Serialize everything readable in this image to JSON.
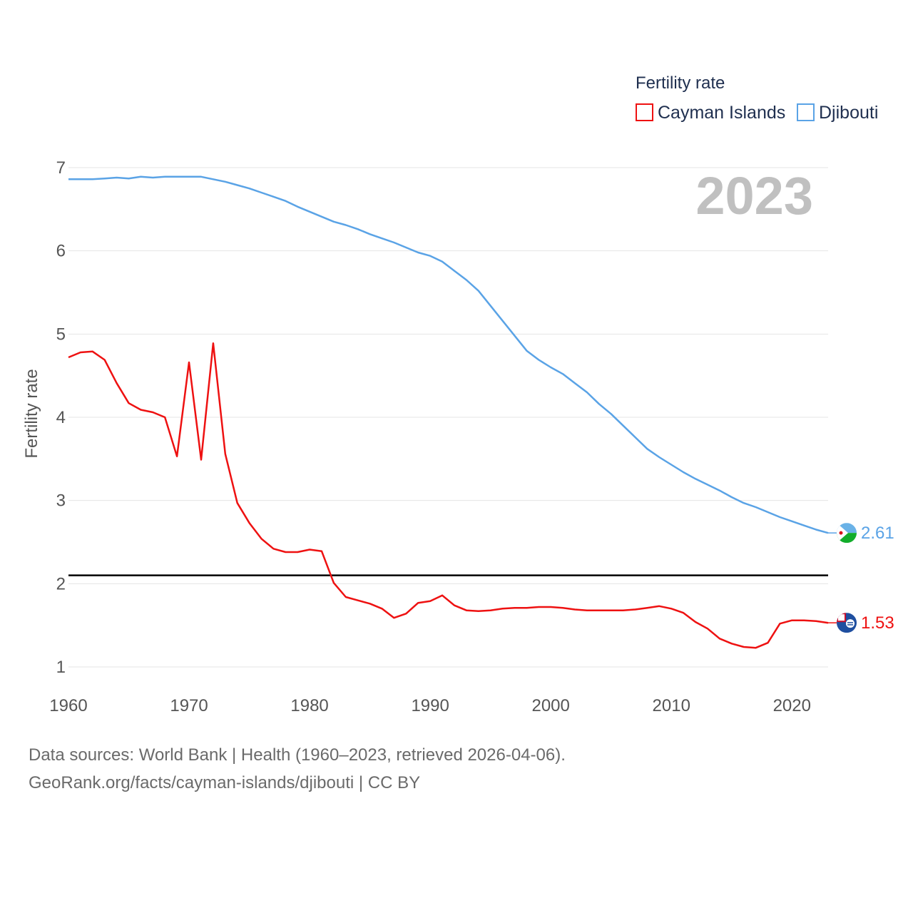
{
  "chart_data": {
    "type": "line",
    "year_label": "2023",
    "ylabel": "Fertility rate",
    "xlabel": "",
    "xlim": [
      1960,
      2023
    ],
    "ylim": [
      1,
      7
    ],
    "x_ticks": [
      1960,
      1970,
      1980,
      1990,
      2000,
      2010,
      2020
    ],
    "y_ticks": [
      1,
      2,
      3,
      4,
      5,
      6,
      7
    ],
    "grid": true,
    "legend": {
      "title": "Fertility rate",
      "position": "top-right"
    },
    "reference_line": {
      "y": 2.1,
      "color": "#000000"
    },
    "series": [
      {
        "name": "Cayman Islands",
        "color": "#ee1111",
        "end_label": "1.53",
        "flag": "cayman-islands-flag",
        "x": [
          1960,
          1961,
          1962,
          1963,
          1964,
          1965,
          1966,
          1967,
          1968,
          1969,
          1970,
          1971,
          1972,
          1973,
          1974,
          1975,
          1976,
          1977,
          1978,
          1979,
          1980,
          1981,
          1982,
          1983,
          1984,
          1985,
          1986,
          1987,
          1988,
          1989,
          1990,
          1991,
          1992,
          1993,
          1994,
          1995,
          1996,
          1997,
          1998,
          1999,
          2000,
          2001,
          2002,
          2003,
          2004,
          2005,
          2006,
          2007,
          2008,
          2009,
          2010,
          2011,
          2012,
          2013,
          2014,
          2015,
          2016,
          2017,
          2018,
          2019,
          2020,
          2021,
          2022,
          2023
        ],
        "values": [
          4.72,
          4.78,
          4.79,
          4.69,
          4.41,
          4.17,
          4.09,
          4.06,
          4.0,
          3.53,
          4.66,
          3.49,
          4.89,
          3.56,
          2.97,
          2.73,
          2.54,
          2.42,
          2.38,
          2.38,
          2.41,
          2.39,
          2.01,
          1.84,
          1.8,
          1.76,
          1.7,
          1.59,
          1.64,
          1.77,
          1.79,
          1.86,
          1.74,
          1.68,
          1.67,
          1.68,
          1.7,
          1.71,
          1.71,
          1.72,
          1.72,
          1.71,
          1.69,
          1.68,
          1.68,
          1.68,
          1.68,
          1.69,
          1.71,
          1.73,
          1.7,
          1.65,
          1.54,
          1.46,
          1.34,
          1.28,
          1.24,
          1.23,
          1.29,
          1.52,
          1.56,
          1.56,
          1.55,
          1.53
        ]
      },
      {
        "name": "Djibouti",
        "color": "#5aa3e6",
        "end_label": "2.61",
        "flag": "djibouti-flag",
        "x": [
          1960,
          1961,
          1962,
          1963,
          1964,
          1965,
          1966,
          1967,
          1968,
          1969,
          1970,
          1971,
          1972,
          1973,
          1974,
          1975,
          1976,
          1977,
          1978,
          1979,
          1980,
          1981,
          1982,
          1983,
          1984,
          1985,
          1986,
          1987,
          1988,
          1989,
          1990,
          1991,
          1992,
          1993,
          1994,
          1995,
          1996,
          1997,
          1998,
          1999,
          2000,
          2001,
          2002,
          2003,
          2004,
          2005,
          2006,
          2007,
          2008,
          2009,
          2010,
          2011,
          2012,
          2013,
          2014,
          2015,
          2016,
          2017,
          2018,
          2019,
          2020,
          2021,
          2022,
          2023
        ],
        "values": [
          6.86,
          6.86,
          6.86,
          6.87,
          6.88,
          6.87,
          6.89,
          6.88,
          6.89,
          6.89,
          6.89,
          6.89,
          6.86,
          6.83,
          6.79,
          6.75,
          6.7,
          6.65,
          6.6,
          6.53,
          6.47,
          6.41,
          6.35,
          6.31,
          6.26,
          6.2,
          6.15,
          6.1,
          6.04,
          5.98,
          5.94,
          5.87,
          5.76,
          5.65,
          5.52,
          5.34,
          5.16,
          4.98,
          4.8,
          4.69,
          4.6,
          4.52,
          4.41,
          4.3,
          4.16,
          4.04,
          3.9,
          3.76,
          3.62,
          3.52,
          3.43,
          3.34,
          3.26,
          3.19,
          3.12,
          3.04,
          2.97,
          2.92,
          2.86,
          2.8,
          2.75,
          2.7,
          2.65,
          2.61
        ]
      }
    ],
    "sources_line": "Data sources: World Bank | Health (1960–2023, retrieved 2026-04-06).",
    "attribution_line": "GeoRank.org/facts/cayman-islands/djibouti | CC BY"
  }
}
